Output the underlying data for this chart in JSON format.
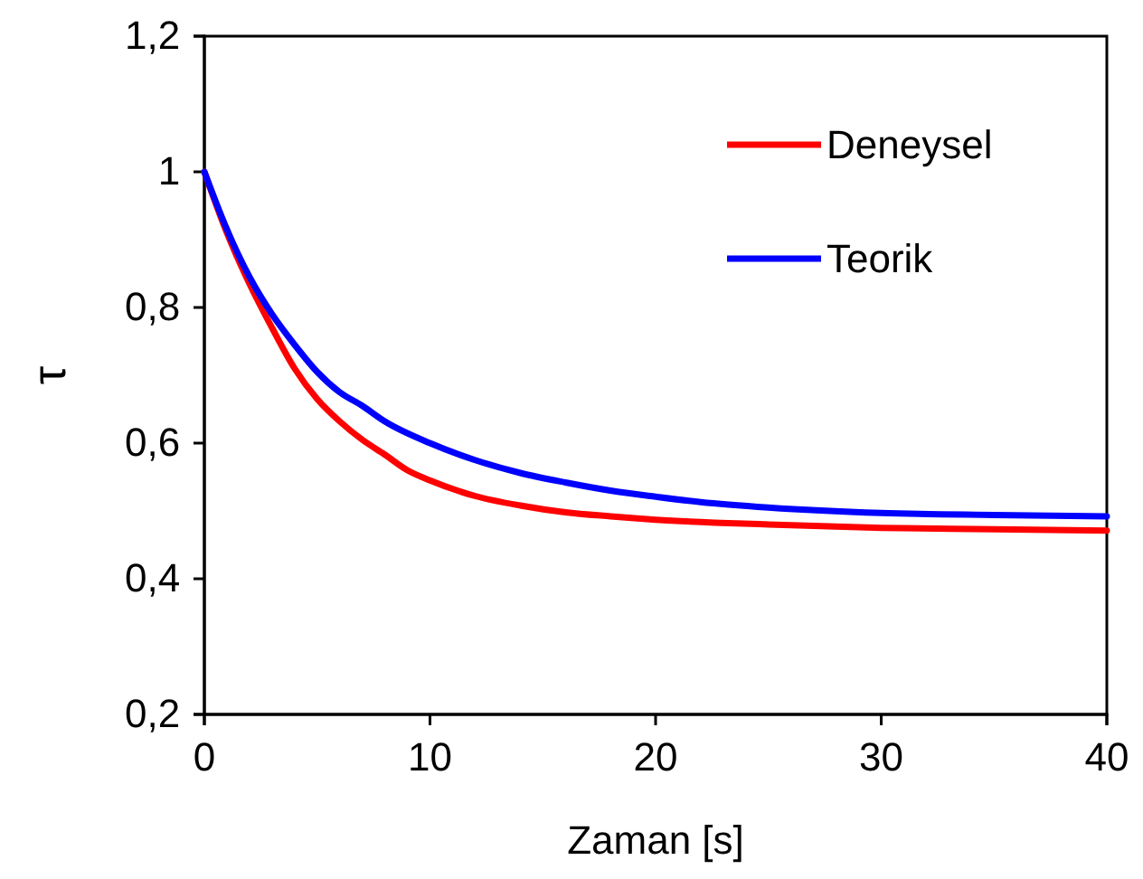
{
  "chart_data": {
    "type": "line",
    "xlabel": "Zaman [s]",
    "ylabel": "τ",
    "xlim": [
      0,
      40
    ],
    "xticks": [
      0,
      10,
      20,
      30,
      40
    ],
    "ylim": [
      0.2,
      1.2
    ],
    "yticks": [
      {
        "value": 0.2,
        "label": "0,2"
      },
      {
        "value": 0.4,
        "label": "0,4"
      },
      {
        "value": 0.6,
        "label": "0,6"
      },
      {
        "value": 0.8,
        "label": "0,8"
      },
      {
        "value": 1,
        "label": "1"
      },
      {
        "value": 1.2,
        "label": "1,2"
      }
    ],
    "grid": false,
    "legend": "top right",
    "marker": "none",
    "line_style": "solid",
    "series": [
      {
        "name": "Deneysel",
        "color": "#ff0000",
        "x": [
          0,
          1,
          2,
          3,
          4,
          5,
          6,
          7,
          8,
          9,
          10,
          12,
          14,
          16,
          18,
          20,
          25,
          30,
          35,
          40
        ],
        "values": [
          1.0,
          0.91,
          0.835,
          0.77,
          0.71,
          0.665,
          0.632,
          0.605,
          0.583,
          0.56,
          0.545,
          0.522,
          0.508,
          0.498,
          0.492,
          0.487,
          0.48,
          0.475,
          0.473,
          0.471
        ]
      },
      {
        "name": "Teorik",
        "color": "#0000ff",
        "x": [
          0,
          1,
          2,
          3,
          4,
          5,
          6,
          7,
          8,
          10,
          12,
          14,
          16,
          18,
          20,
          22,
          25,
          30,
          35,
          40
        ],
        "values": [
          1.0,
          0.915,
          0.845,
          0.79,
          0.745,
          0.705,
          0.675,
          0.655,
          0.632,
          0.6,
          0.575,
          0.556,
          0.542,
          0.53,
          0.521,
          0.513,
          0.505,
          0.497,
          0.494,
          0.492
        ]
      }
    ]
  }
}
